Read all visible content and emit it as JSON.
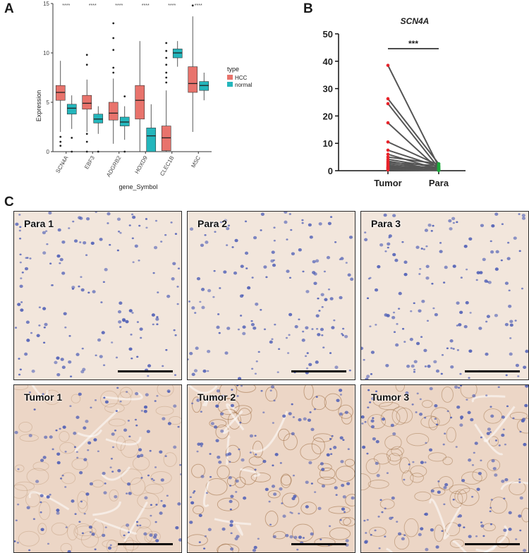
{
  "panels": {
    "a": "A",
    "b": "B",
    "c": "C"
  },
  "panel_a": {
    "xlabel": "gene_Symbol",
    "ylabel": "Expression",
    "legend_title": "type",
    "legend": [
      "HCC",
      "normal"
    ],
    "sig_marks": [
      "****",
      "****",
      "****",
      "****",
      "****",
      "****"
    ]
  },
  "panel_b": {
    "title": "SCN4A",
    "significance": "***",
    "xtick_labels": [
      "Tumor",
      "Para"
    ]
  },
  "ihc_labels": [
    "Para 1",
    "Para 2",
    "Para 3",
    "Tumor 1",
    "Tumor 2",
    "Tumor 3"
  ],
  "colors": {
    "hcc": "#e8736c",
    "normal": "#24b6bc",
    "tumor_point": "#e8232a",
    "para_point": "#1ca83a",
    "line": "#555555",
    "tissue_para": "#f2e6dc",
    "tissue_tumor": "#ecd6c6",
    "nuclei": "#4a5bb5",
    "stain": "#9a6a3e"
  },
  "chart_data": [
    {
      "type": "box",
      "title": "",
      "xlabel": "gene_Symbol",
      "ylabel": "Expression",
      "categories": [
        "SCN4A",
        "EBF3",
        "ADGRB2",
        "HOXD9",
        "CLEC1B",
        "MSC"
      ],
      "ylim": [
        0,
        15
      ],
      "yticks": [
        0,
        5,
        10,
        15
      ],
      "legend_position": "right",
      "series": [
        {
          "name": "HCC",
          "boxes": [
            {
              "min": 2.0,
              "q1": 5.2,
              "median": 6.0,
              "q3": 6.7,
              "max": 9.2,
              "outliers": [
                1.0,
                1.5,
                0.6
              ]
            },
            {
              "min": 2.0,
              "q1": 4.3,
              "median": 4.9,
              "q3": 5.7,
              "max": 7.3,
              "outliers": [
                9.8,
                8.8,
                1.8,
                1.0,
                0.0
              ]
            },
            {
              "min": 0.8,
              "q1": 3.2,
              "median": 3.9,
              "q3": 5.0,
              "max": 7.4,
              "outliers": [
                13.0,
                11.5,
                10.3,
                8.5,
                8.0
              ]
            },
            {
              "min": 0.0,
              "q1": 3.3,
              "median": 5.2,
              "q3": 6.7,
              "max": 11.2,
              "outliers": []
            },
            {
              "min": 0.0,
              "q1": 0.1,
              "median": 1.4,
              "q3": 2.6,
              "max": 6.2,
              "outliers": [
                11.0,
                10.2,
                9.5,
                8.8,
                8.0,
                7.5,
                7.0
              ]
            },
            {
              "min": 2.0,
              "q1": 6.0,
              "median": 6.9,
              "q3": 8.6,
              "max": 13.7,
              "outliers": [
                14.8
              ]
            }
          ]
        },
        {
          "name": "normal",
          "boxes": [
            {
              "min": 2.3,
              "q1": 3.8,
              "median": 4.4,
              "q3": 4.8,
              "max": 5.7,
              "outliers": [
                1.4,
                0.0
              ]
            },
            {
              "min": 1.8,
              "q1": 2.9,
              "median": 3.3,
              "q3": 3.8,
              "max": 4.6,
              "outliers": [
                0.0
              ]
            },
            {
              "min": 1.2,
              "q1": 2.6,
              "median": 3.0,
              "q3": 3.5,
              "max": 4.6,
              "outliers": [
                5.6,
                0.0
              ]
            },
            {
              "min": 0.0,
              "q1": 0.0,
              "median": 1.6,
              "q3": 2.4,
              "max": 4.8,
              "outliers": []
            },
            {
              "min": 8.6,
              "q1": 9.5,
              "median": 10.0,
              "q3": 10.4,
              "max": 11.2,
              "outliers": []
            },
            {
              "min": 5.2,
              "q1": 6.2,
              "median": 6.7,
              "q3": 7.1,
              "max": 8.0,
              "outliers": []
            }
          ]
        }
      ]
    },
    {
      "type": "line",
      "title": "SCN4A",
      "xlabel": "",
      "ylabel": "",
      "categories": [
        "Tumor",
        "Para"
      ],
      "ylim": [
        0,
        50
      ],
      "yticks": [
        0,
        10,
        20,
        30,
        40,
        50
      ],
      "significance": "***",
      "pairs": [
        [
          38.5,
          1.5
        ],
        [
          26.3,
          2.5
        ],
        [
          24.5,
          1.0
        ],
        [
          17.5,
          0.5
        ],
        [
          10.5,
          2.0
        ],
        [
          7.5,
          1.5
        ],
        [
          6.0,
          0.5
        ],
        [
          5.0,
          2.5
        ],
        [
          4.2,
          1.0
        ],
        [
          3.5,
          0.3
        ],
        [
          3.0,
          1.8
        ],
        [
          2.5,
          0.8
        ],
        [
          2.0,
          0.2
        ],
        [
          1.5,
          1.2
        ],
        [
          1.2,
          0.4
        ],
        [
          1.0,
          0.1
        ],
        [
          0.8,
          0.6
        ],
        [
          0.5,
          0.2
        ],
        [
          0.3,
          0.1
        ]
      ]
    }
  ]
}
